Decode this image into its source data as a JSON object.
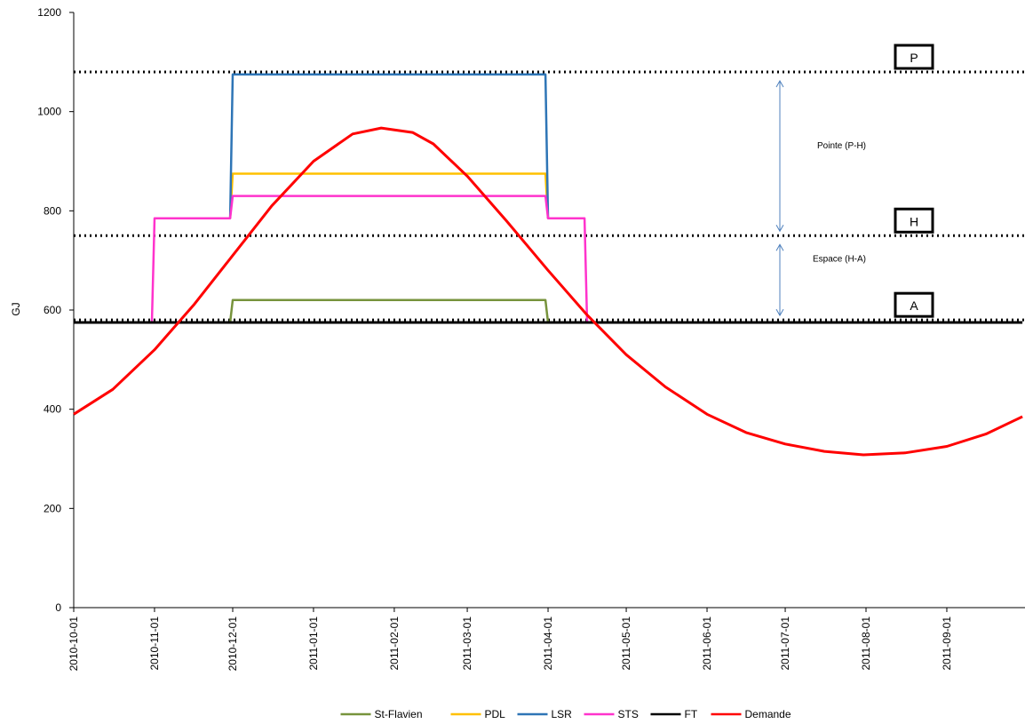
{
  "chart_data": {
    "type": "line",
    "ylabel": "GJ",
    "xlabel": "",
    "ylim": [
      0,
      1200
    ],
    "yticks": [
      0,
      200,
      400,
      600,
      800,
      1000,
      1200
    ],
    "xlim": [
      "2010-10-01",
      "2011-09-30"
    ],
    "xticks": [
      "2010-10-01",
      "2010-11-01",
      "2010-12-01",
      "2011-01-01",
      "2011-02-01",
      "2011-03-01",
      "2011-04-01",
      "2011-05-01",
      "2011-06-01",
      "2011-07-01",
      "2011-08-01",
      "2011-09-01"
    ],
    "grid": false,
    "legend_position": "bottom",
    "reference_lines": [
      {
        "label": "P",
        "y": 1080
      },
      {
        "label": "H",
        "y": 750
      },
      {
        "label": "A",
        "y": 580
      }
    ],
    "annotations": [
      {
        "text": "Pointe (P-H)",
        "from": 1080,
        "to": 750
      },
      {
        "text": "Espace (H-A)",
        "from": 750,
        "to": 580
      }
    ],
    "series": [
      {
        "name": "St-Flavien",
        "color": "#77933c",
        "points": [
          [
            "2010-11-30",
            575
          ],
          [
            "2010-12-01",
            620
          ],
          [
            "2011-03-31",
            620
          ],
          [
            "2011-04-01",
            575
          ]
        ]
      },
      {
        "name": "PDL",
        "color": "#ffc000",
        "points": [
          [
            "2010-11-30",
            785
          ],
          [
            "2010-12-01",
            875
          ],
          [
            "2011-03-31",
            875
          ],
          [
            "2011-04-01",
            785
          ]
        ]
      },
      {
        "name": "LSR",
        "color": "#2e75b6",
        "points": [
          [
            "2010-11-30",
            785
          ],
          [
            "2010-12-01",
            1075
          ],
          [
            "2011-03-31",
            1075
          ],
          [
            "2011-04-01",
            785
          ]
        ]
      },
      {
        "name": "STS",
        "color": "#ff33cc",
        "points": [
          [
            "2010-10-31",
            575
          ],
          [
            "2010-11-01",
            785
          ],
          [
            "2010-11-30",
            785
          ],
          [
            "2010-12-01",
            830
          ],
          [
            "2011-03-31",
            830
          ],
          [
            "2011-04-01",
            785
          ],
          [
            "2011-04-15",
            785
          ],
          [
            "2011-04-16",
            575
          ]
        ]
      },
      {
        "name": "FT",
        "color": "#000000",
        "points": [
          [
            "2010-10-01",
            575
          ],
          [
            "2011-09-30",
            575
          ]
        ]
      },
      {
        "name": "Demande",
        "color": "#ff0000",
        "points": [
          [
            "2010-10-01",
            390
          ],
          [
            "2010-10-16",
            440
          ],
          [
            "2010-11-01",
            520
          ],
          [
            "2010-11-16",
            610
          ],
          [
            "2010-12-01",
            710
          ],
          [
            "2010-12-16",
            810
          ],
          [
            "2011-01-01",
            900
          ],
          [
            "2011-01-16",
            955
          ],
          [
            "2011-01-27",
            967
          ],
          [
            "2011-02-08",
            958
          ],
          [
            "2011-02-16",
            935
          ],
          [
            "2011-03-01",
            870
          ],
          [
            "2011-03-16",
            780
          ],
          [
            "2011-04-01",
            680
          ],
          [
            "2011-04-16",
            590
          ],
          [
            "2011-05-01",
            510
          ],
          [
            "2011-05-16",
            445
          ],
          [
            "2011-06-01",
            390
          ],
          [
            "2011-06-16",
            353
          ],
          [
            "2011-07-01",
            330
          ],
          [
            "2011-07-16",
            315
          ],
          [
            "2011-07-31",
            308
          ],
          [
            "2011-08-16",
            312
          ],
          [
            "2011-09-01",
            325
          ],
          [
            "2011-09-16",
            350
          ],
          [
            "2011-09-30",
            385
          ]
        ]
      }
    ]
  }
}
